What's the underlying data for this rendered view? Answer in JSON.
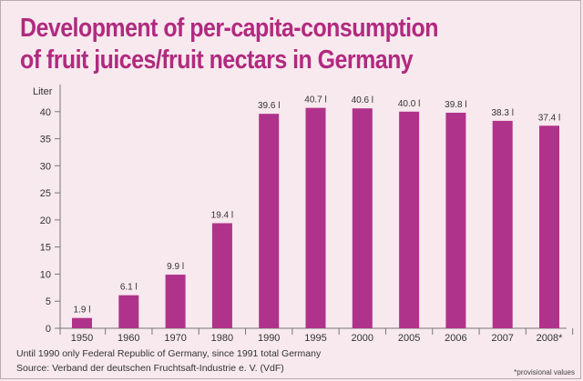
{
  "chart_data": {
    "type": "bar",
    "title_line1": "Development of per-capita-consumption",
    "title_line2": "of fruit juices/fruit nectars in Germany",
    "ylabel": "Liter",
    "ylim": [
      0,
      45
    ],
    "yticks": [
      0,
      5,
      10,
      15,
      20,
      25,
      30,
      35,
      40
    ],
    "categories": [
      "1950",
      "1960",
      "1970",
      "1980",
      "1990",
      "1995",
      "2000",
      "2005",
      "2006",
      "2007",
      "2008*"
    ],
    "values": [
      1.9,
      6.1,
      9.9,
      19.4,
      39.6,
      40.7,
      40.6,
      40.0,
      39.8,
      38.3,
      37.4
    ],
    "data_labels": [
      "1.9 l",
      "6.1 l",
      "9.9 l",
      "19.4 l",
      "39.6 l",
      "40.7 l",
      "40.6 l",
      "40.0 l",
      "39.8 l",
      "38.3 l",
      "37.4 l"
    ],
    "bar_color": "#b0338b",
    "title_color": "#b12a7f",
    "background_color": "#f7e9ee"
  },
  "footnotes": {
    "line1": "Until 1990 only Federal Republic of Germany, since 1991 total Germany",
    "line2": "Source: Verband der deutschen Fruchtsaft-Industrie e. V. (VdF)",
    "provisional": "*provisional values"
  }
}
